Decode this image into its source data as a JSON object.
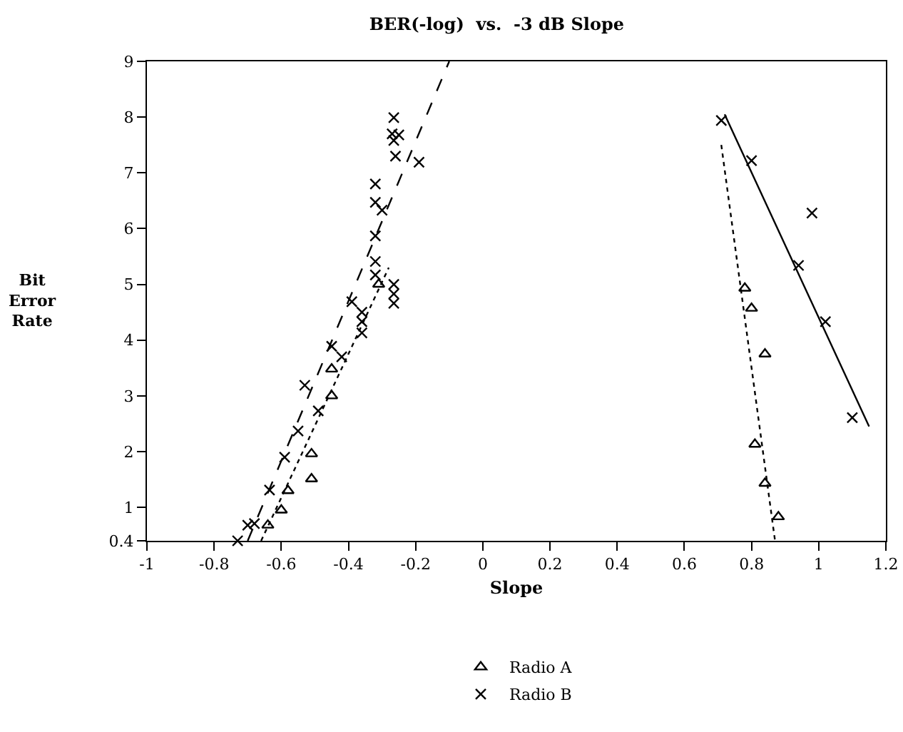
{
  "chart_data": {
    "type": "scatter",
    "title": "BER(-log)  vs.  -3 dB Slope",
    "xlabel": "Slope",
    "ylabel": "Bit Error Rate",
    "xlim": [
      -1,
      1.2
    ],
    "xticks": [
      -1,
      -0.8,
      -0.6,
      -0.4,
      -0.2,
      0,
      0.2,
      0.4,
      0.6,
      0.8,
      1,
      1.2
    ],
    "ylim": [
      0.4,
      9
    ],
    "yticks": [
      0.4,
      1,
      2,
      3,
      4,
      5,
      6,
      7,
      8,
      9
    ],
    "grid": false,
    "legend": "bottom",
    "series": [
      {
        "name": "Radio A",
        "color": "#000000",
        "marker": "triangle",
        "x": [
          -0.64,
          -0.6,
          -0.58,
          -0.51,
          -0.51,
          -0.45,
          -0.45,
          -0.31,
          0.78,
          0.8,
          0.84,
          0.81,
          0.84,
          0.88
        ],
        "values": [
          0.68,
          0.95,
          1.3,
          1.96,
          1.51,
          3.0,
          3.48,
          5.0,
          4.93,
          4.57,
          3.75,
          2.13,
          1.43,
          0.83
        ]
      },
      {
        "name": "Radio B",
        "color": "#000000",
        "marker": "cross",
        "x": [
          -0.73,
          -0.7,
          -0.68,
          -0.635,
          -0.59,
          -0.55,
          -0.53,
          -0.49,
          -0.45,
          -0.42,
          -0.39,
          -0.36,
          -0.36,
          -0.36,
          -0.32,
          -0.265,
          -0.265,
          -0.265,
          -0.32,
          -0.32,
          -0.3,
          -0.32,
          -0.32,
          -0.26,
          -0.19,
          -0.265,
          -0.27,
          -0.25,
          -0.265,
          0.71,
          0.8,
          0.98,
          0.94,
          1.02,
          1.1
        ],
        "values": [
          0.4,
          0.68,
          0.71,
          1.31,
          1.9,
          2.37,
          3.19,
          2.73,
          3.89,
          3.7,
          4.69,
          4.5,
          4.33,
          4.13,
          5.17,
          5.0,
          4.83,
          4.66,
          5.41,
          5.87,
          6.33,
          6.47,
          6.8,
          7.3,
          7.19,
          7.58,
          7.7,
          7.68,
          7.99,
          7.94,
          7.22,
          6.28,
          5.34,
          4.33,
          2.61
        ]
      },
      {
        "type": "line",
        "color": "#000000",
        "marker": "none",
        "line_style": "dashed",
        "x": [
          -0.7,
          -0.1
        ],
        "values": [
          0.4,
          9
        ]
      },
      {
        "type": "line",
        "color": "#000000",
        "marker": "none",
        "line_style": "dotted",
        "x": [
          -0.66,
          -0.28
        ],
        "values": [
          0.4,
          5.3
        ]
      },
      {
        "type": "line",
        "color": "#000000",
        "marker": "none",
        "line_style": "solid",
        "x": [
          0.72,
          1.15
        ],
        "values": [
          8.05,
          2.45
        ]
      },
      {
        "type": "line",
        "color": "#000000",
        "marker": "none",
        "line_style": "dotted",
        "x": [
          0.71,
          0.87
        ],
        "values": [
          7.5,
          0.4
        ]
      }
    ]
  }
}
